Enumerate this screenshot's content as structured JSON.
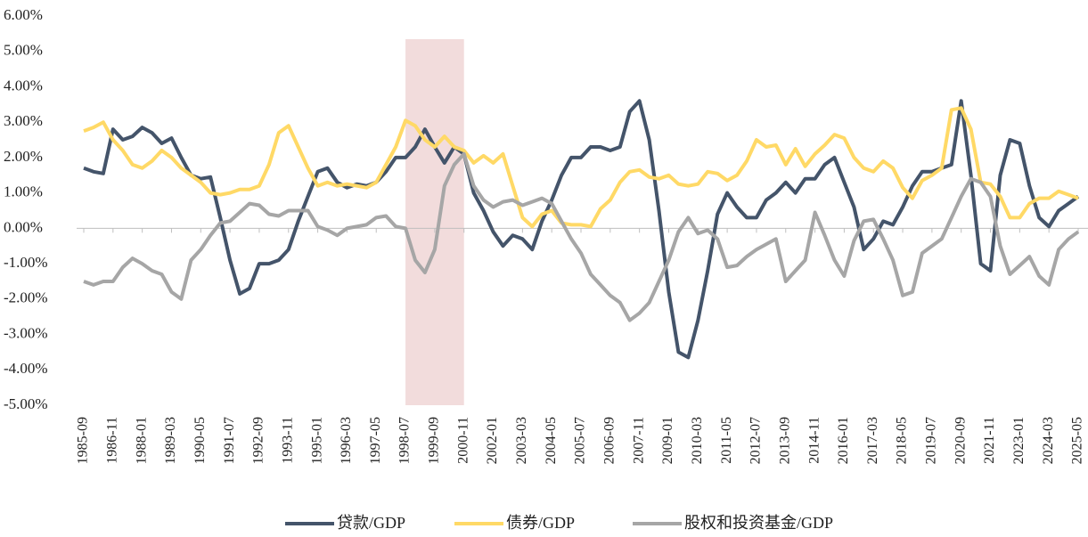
{
  "chart_data": {
    "type": "line",
    "categories": [
      "1985-09",
      null,
      null,
      "1986-11",
      null,
      null,
      "1988-01",
      null,
      null,
      "1989-03",
      null,
      null,
      "1990-05",
      null,
      null,
      "1991-07",
      null,
      null,
      "1992-09",
      null,
      null,
      "1993-11",
      null,
      null,
      "1995-01",
      null,
      null,
      "1996-03",
      null,
      null,
      "1997-05",
      null,
      null,
      "1998-07",
      null,
      null,
      "1999-09",
      null,
      null,
      "2000-11",
      null,
      null,
      "2002-01",
      null,
      null,
      "2003-03",
      null,
      null,
      "2004-05",
      null,
      null,
      "2005-07",
      null,
      null,
      "2006-09",
      null,
      null,
      "2007-11",
      null,
      null,
      "2009-01",
      null,
      null,
      "2010-03",
      null,
      null,
      "2011-05",
      null,
      null,
      "2012-07",
      null,
      null,
      "2013-09",
      null,
      null,
      "2014-11",
      null,
      null,
      "2016-01",
      null,
      null,
      "2017-03",
      null,
      null,
      "2018-05",
      null,
      null,
      "2019-07",
      null,
      null,
      "2020-09",
      null,
      null,
      "2021-11",
      null,
      null,
      "2023-01",
      null,
      null,
      "2024-03",
      null,
      null,
      "2025-05"
    ],
    "series": [
      {
        "name": "贷款/GDP",
        "color": "#44546a",
        "values": [
          1.7,
          1.6,
          1.55,
          2.8,
          2.5,
          2.6,
          2.85,
          2.7,
          2.4,
          2.55,
          2.0,
          1.5,
          1.4,
          1.45,
          0.3,
          -0.9,
          -1.85,
          -1.7,
          -1.0,
          -1.0,
          -0.9,
          -0.6,
          0.2,
          0.9,
          1.6,
          1.7,
          1.3,
          1.15,
          1.25,
          1.2,
          1.3,
          1.6,
          2.0,
          2.0,
          2.3,
          2.8,
          2.3,
          1.85,
          2.3,
          2.1,
          1.0,
          0.5,
          -0.1,
          -0.5,
          -0.2,
          -0.3,
          -0.6,
          0.2,
          0.8,
          1.5,
          2.0,
          2.0,
          2.3,
          2.3,
          2.2,
          2.3,
          3.3,
          3.6,
          2.5,
          0.5,
          -1.8,
          -3.5,
          -3.65,
          -2.6,
          -1.2,
          0.4,
          1.0,
          0.6,
          0.3,
          0.3,
          0.8,
          1.0,
          1.3,
          1.0,
          1.4,
          1.4,
          1.8,
          2.0,
          1.3,
          0.6,
          -0.6,
          -0.3,
          0.2,
          0.1,
          0.6,
          1.2,
          1.6,
          1.6,
          1.7,
          1.8,
          3.6,
          1.5,
          -1.0,
          -1.2,
          1.5,
          2.5,
          2.4,
          1.2,
          0.3,
          0.05,
          0.5,
          0.7,
          0.9
        ]
      },
      {
        "name": "债券/GDP",
        "color": "#ffd966",
        "values": [
          2.75,
          2.85,
          3.0,
          2.5,
          2.2,
          1.8,
          1.7,
          1.9,
          2.2,
          2.0,
          1.7,
          1.5,
          1.3,
          1.0,
          0.95,
          1.0,
          1.1,
          1.1,
          1.2,
          1.8,
          2.7,
          2.9,
          2.3,
          1.7,
          1.2,
          1.3,
          1.2,
          1.25,
          1.2,
          1.15,
          1.3,
          1.8,
          2.3,
          3.05,
          2.9,
          2.5,
          2.3,
          2.6,
          2.3,
          2.2,
          1.85,
          2.05,
          1.85,
          2.1,
          1.2,
          0.3,
          0.05,
          0.4,
          0.5,
          0.15,
          0.1,
          0.1,
          0.05,
          0.55,
          0.8,
          1.3,
          1.6,
          1.65,
          1.45,
          1.4,
          1.5,
          1.25,
          1.2,
          1.25,
          1.6,
          1.55,
          1.35,
          1.5,
          1.9,
          2.5,
          2.3,
          2.35,
          1.8,
          2.25,
          1.75,
          2.1,
          2.35,
          2.65,
          2.55,
          2.0,
          1.7,
          1.6,
          1.9,
          1.7,
          1.15,
          0.85,
          1.35,
          1.5,
          1.7,
          3.35,
          3.4,
          2.8,
          1.3,
          1.25,
          0.9,
          0.3,
          0.3,
          0.7,
          0.85,
          0.85,
          1.05,
          0.95,
          0.85
        ]
      },
      {
        "name": "股权和投资基金/GDP",
        "color": "#a6a6a6",
        "values": [
          -1.5,
          -1.6,
          -1.5,
          -1.5,
          -1.1,
          -0.85,
          -1.0,
          -1.2,
          -1.3,
          -1.8,
          -2.0,
          -0.9,
          -0.6,
          -0.2,
          0.15,
          0.2,
          0.45,
          0.7,
          0.65,
          0.4,
          0.35,
          0.5,
          0.5,
          0.5,
          0.05,
          -0.05,
          -0.2,
          0.0,
          0.05,
          0.1,
          0.3,
          0.35,
          0.05,
          0.0,
          -0.9,
          -1.25,
          -0.6,
          1.2,
          1.8,
          2.1,
          1.2,
          0.8,
          0.6,
          0.75,
          0.8,
          0.65,
          0.75,
          0.85,
          0.7,
          0.2,
          -0.3,
          -0.7,
          -1.3,
          -1.6,
          -1.9,
          -2.1,
          -2.6,
          -2.4,
          -2.1,
          -1.5,
          -0.9,
          -0.1,
          0.3,
          -0.15,
          -0.05,
          -0.3,
          -1.1,
          -1.05,
          -0.8,
          -0.6,
          -0.45,
          -0.3,
          -1.5,
          -1.2,
          -0.9,
          0.45,
          -0.2,
          -0.9,
          -1.35,
          -0.35,
          0.2,
          0.25,
          -0.3,
          -0.9,
          -1.9,
          -1.8,
          -0.7,
          -0.5,
          -0.3,
          0.3,
          0.9,
          1.4,
          1.3,
          0.9,
          -0.5,
          -1.3,
          -1.05,
          -0.8,
          -1.35,
          -1.6,
          -0.6,
          -0.3,
          -0.1
        ]
      }
    ],
    "ylim": [
      -5,
      6
    ],
    "yticks": [
      {
        "value": -5,
        "label": "-5.00%"
      },
      {
        "value": -4,
        "label": "-4.00%"
      },
      {
        "value": -3,
        "label": "-3.00%"
      },
      {
        "value": -2,
        "label": "-2.00%"
      },
      {
        "value": -1,
        "label": "-1.00%"
      },
      {
        "value": 0,
        "label": "0.00%"
      },
      {
        "value": 1,
        "label": "1.00%"
      },
      {
        "value": 2,
        "label": "2.00%"
      },
      {
        "value": 3,
        "label": "3.00%"
      },
      {
        "value": 4,
        "label": "4.00%"
      },
      {
        "value": 5,
        "label": "5.00%"
      },
      {
        "value": 6,
        "label": "6.00%"
      }
    ],
    "highlight": {
      "from": "1998-07",
      "to": "2000-11",
      "color": "#f2dcdc"
    },
    "legend": "bottom"
  }
}
